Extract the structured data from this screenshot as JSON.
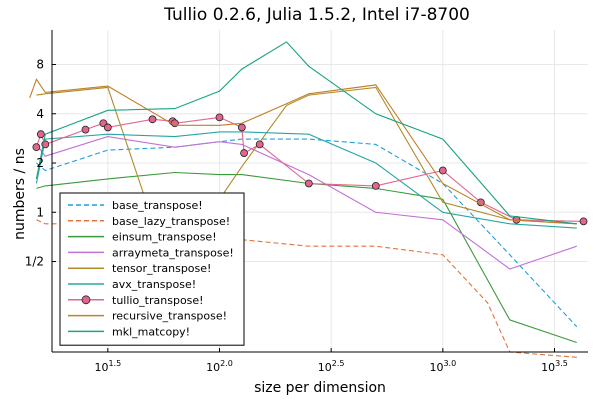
{
  "chart_data": {
    "type": "line",
    "title": "Tullio 0.2.6, Julia 1.5.2, Intel i7-8700",
    "xlabel": "size per dimension",
    "ylabel": "numbers / ns",
    "xscale": "log10",
    "yscale": "log2",
    "xlim_exponent": [
      1.25,
      3.65
    ],
    "ylim": [
      0.14,
      13.0
    ],
    "grid": true,
    "legend_position": "bottom-left",
    "x_ticks": [
      {
        "base": "10",
        "exp": "1.5",
        "exponent": 1.5
      },
      {
        "base": "10",
        "exp": "2.0",
        "exponent": 2.0
      },
      {
        "base": "10",
        "exp": "2.5",
        "exponent": 2.5
      },
      {
        "base": "10",
        "exp": "3.0",
        "exponent": 3.0
      },
      {
        "base": "10",
        "exp": "3.5",
        "exponent": 3.5
      }
    ],
    "y_ticks": [
      {
        "label": "1/2",
        "value": 0.5
      },
      {
        "label": "1",
        "value": 1
      },
      {
        "label": "2",
        "value": 2
      },
      {
        "label": "4",
        "value": 4
      },
      {
        "label": "8",
        "value": 8
      }
    ],
    "series": [
      {
        "name": "base_transpose!",
        "color": "#1f9fd8",
        "dash": "5,3",
        "marker": false,
        "x": [
          1.18,
          1.22,
          1.5,
          1.8,
          2.0,
          2.1,
          2.4,
          2.7,
          3.0,
          3.3,
          3.6
        ],
        "y": [
          2.0,
          1.8,
          2.4,
          2.5,
          2.7,
          2.8,
          2.8,
          2.6,
          1.5,
          0.55,
          0.2
        ]
      },
      {
        "name": "base_lazy_transpose!",
        "color": "#e2753f",
        "dash": "5,3",
        "marker": false,
        "x": [
          1.18,
          1.22,
          1.5,
          1.8,
          2.0,
          2.1,
          2.4,
          2.7,
          3.0,
          3.2,
          3.3,
          3.6
        ],
        "y": [
          0.9,
          0.85,
          0.85,
          0.85,
          0.72,
          0.68,
          0.62,
          0.62,
          0.55,
          0.28,
          0.14,
          0.13
        ]
      },
      {
        "name": "einsum_transpose!",
        "color": "#3a9b3a",
        "dash": "",
        "marker": false,
        "x": [
          1.18,
          1.22,
          1.5,
          1.8,
          2.0,
          2.1,
          2.4,
          2.7,
          3.0,
          3.3,
          3.6
        ],
        "y": [
          1.4,
          1.45,
          1.6,
          1.75,
          1.7,
          1.7,
          1.5,
          1.4,
          1.2,
          0.22,
          0.16
        ]
      },
      {
        "name": "arraymeta_transpose!",
        "color": "#c271d8",
        "dash": "",
        "marker": false,
        "x": [
          1.18,
          1.22,
          1.5,
          1.8,
          2.0,
          2.1,
          2.4,
          2.7,
          3.0,
          3.3,
          3.6
        ],
        "y": [
          2.6,
          2.2,
          2.9,
          2.5,
          2.7,
          2.6,
          1.7,
          1.0,
          0.9,
          0.45,
          0.62
        ]
      },
      {
        "name": "tensor_transpose!",
        "color": "#b08b28",
        "dash": "",
        "marker": false,
        "x": [
          1.18,
          1.22,
          1.5,
          1.8,
          2.0,
          2.1,
          2.3,
          2.4,
          2.7,
          3.0,
          3.3,
          3.6
        ],
        "y": [
          5.2,
          5.3,
          5.8,
          0.35,
          1.2,
          1.9,
          4.5,
          5.2,
          5.8,
          1.15,
          0.9,
          0.85
        ]
      },
      {
        "name": "avx_transpose!",
        "color": "#2aa5a7",
        "dash": "",
        "marker": false,
        "x": [
          1.18,
          1.22,
          1.5,
          1.8,
          2.0,
          2.1,
          2.4,
          2.7,
          3.0,
          3.3,
          3.6
        ],
        "y": [
          1.5,
          2.8,
          3.0,
          2.9,
          3.1,
          3.1,
          3.0,
          2.0,
          1.0,
          0.85,
          0.8
        ]
      },
      {
        "name": "tullio_transpose!",
        "color": "#e2658d",
        "dash": "",
        "marker": true,
        "x": [
          1.18,
          1.2,
          1.22,
          1.4,
          1.48,
          1.5,
          1.7,
          1.79,
          1.8,
          2.0,
          2.1,
          2.11,
          2.18,
          2.4,
          2.7,
          3.0,
          3.17,
          3.33,
          3.63
        ],
        "y": [
          2.5,
          3.0,
          2.6,
          3.2,
          3.5,
          3.3,
          3.7,
          3.6,
          3.5,
          3.8,
          3.3,
          2.3,
          2.6,
          1.5,
          1.45,
          1.8,
          1.15,
          0.9,
          0.88
        ]
      },
      {
        "name": "recursive_transpose!",
        "color": "#c07f28",
        "dash": "",
        "marker": false,
        "x": [
          1.15,
          1.18,
          1.22,
          1.5,
          1.8,
          2.0,
          2.1,
          2.3,
          2.4,
          2.7,
          3.0,
          3.3,
          3.6
        ],
        "y": [
          5.0,
          6.5,
          5.4,
          5.9,
          3.4,
          3.4,
          3.5,
          4.6,
          5.3,
          6.0,
          1.5,
          0.9,
          0.85
        ]
      },
      {
        "name": "mkl_matcopy!",
        "color": "#1ba384",
        "dash": "",
        "marker": false,
        "x": [
          1.18,
          1.22,
          1.5,
          1.8,
          2.0,
          2.1,
          2.3,
          2.4,
          2.7,
          3.0,
          3.3,
          3.6
        ],
        "y": [
          1.6,
          3.0,
          4.2,
          4.3,
          5.5,
          7.5,
          11.0,
          7.8,
          4.0,
          2.8,
          0.95,
          0.85
        ]
      }
    ]
  }
}
